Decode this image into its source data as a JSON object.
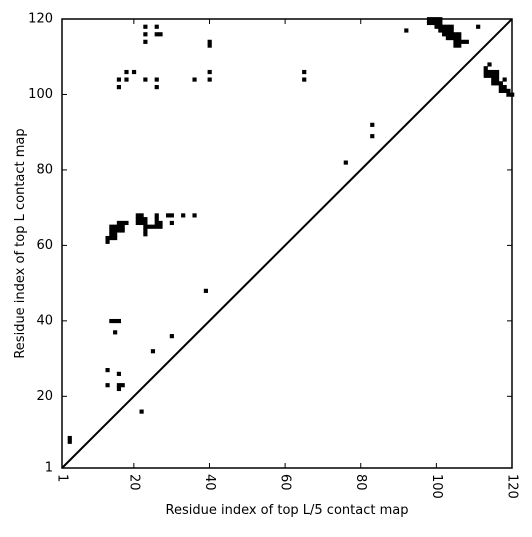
{
  "chart_data": {
    "type": "scatter",
    "marker": "square",
    "title": "",
    "xlabel": "Residue index of top L/5 contact map",
    "ylabel": "Residue index of top L contact map",
    "xlim": [
      1,
      120
    ],
    "ylim": [
      1,
      120
    ],
    "xticks": [
      1,
      20,
      40,
      60,
      80,
      100,
      120
    ],
    "yticks": [
      1,
      20,
      40,
      60,
      80,
      100,
      120
    ],
    "xtick_labels": [
      "1",
      "20",
      "40",
      "60",
      "80",
      "100",
      "120"
    ],
    "ytick_labels": [
      "1",
      "20",
      "40",
      "60",
      "80",
      "100",
      "120"
    ],
    "xtick_rotation": 90,
    "grid": false,
    "diagonal_line": {
      "x": [
        1,
        120
      ],
      "y": [
        1,
        120
      ]
    },
    "colors": {
      "marker": "#000000",
      "line": "#000000",
      "background": "#ffffff"
    },
    "points": [
      [
        3,
        8
      ],
      [
        3,
        9
      ],
      [
        13,
        61
      ],
      [
        13,
        62
      ],
      [
        14,
        62
      ],
      [
        14,
        63
      ],
      [
        14,
        64
      ],
      [
        14,
        65
      ],
      [
        15,
        62
      ],
      [
        15,
        63
      ],
      [
        15,
        64
      ],
      [
        15,
        65
      ],
      [
        16,
        64
      ],
      [
        16,
        65
      ],
      [
        16,
        66
      ],
      [
        17,
        64
      ],
      [
        17,
        65
      ],
      [
        17,
        66
      ],
      [
        18,
        66
      ],
      [
        21,
        66
      ],
      [
        21,
        67
      ],
      [
        21,
        68
      ],
      [
        22,
        66
      ],
      [
        22,
        67
      ],
      [
        22,
        68
      ],
      [
        23,
        63
      ],
      [
        23,
        64
      ],
      [
        23,
        65
      ],
      [
        23,
        66
      ],
      [
        23,
        67
      ],
      [
        24,
        65
      ],
      [
        25,
        65
      ],
      [
        26,
        65
      ],
      [
        26,
        66
      ],
      [
        26,
        67
      ],
      [
        26,
        68
      ],
      [
        27,
        65
      ],
      [
        27,
        66
      ],
      [
        29,
        68
      ],
      [
        30,
        68
      ],
      [
        30,
        66
      ],
      [
        33,
        68
      ],
      [
        36,
        68
      ],
      [
        14,
        40
      ],
      [
        15,
        40
      ],
      [
        16,
        40
      ],
      [
        15,
        37
      ],
      [
        13,
        27
      ],
      [
        16,
        26
      ],
      [
        13,
        23
      ],
      [
        16,
        22
      ],
      [
        16,
        23
      ],
      [
        17,
        23
      ],
      [
        22,
        16
      ],
      [
        25,
        32
      ],
      [
        30,
        36
      ],
      [
        39,
        48
      ],
      [
        16,
        102
      ],
      [
        16,
        104
      ],
      [
        18,
        104
      ],
      [
        18,
        106
      ],
      [
        20,
        106
      ],
      [
        23,
        104
      ],
      [
        23,
        114
      ],
      [
        23,
        116
      ],
      [
        23,
        118
      ],
      [
        26,
        102
      ],
      [
        26,
        104
      ],
      [
        26,
        116
      ],
      [
        26,
        118
      ],
      [
        27,
        116
      ],
      [
        36,
        104
      ],
      [
        40,
        104
      ],
      [
        40,
        106
      ],
      [
        40,
        113
      ],
      [
        40,
        114
      ],
      [
        65,
        104
      ],
      [
        65,
        106
      ],
      [
        76,
        82
      ],
      [
        83,
        89
      ],
      [
        83,
        92
      ],
      [
        92,
        117
      ],
      [
        98,
        119
      ],
      [
        98,
        120
      ],
      [
        99,
        119
      ],
      [
        99,
        120
      ],
      [
        100,
        118
      ],
      [
        100,
        119
      ],
      [
        100,
        120
      ],
      [
        101,
        117
      ],
      [
        101,
        118
      ],
      [
        101,
        119
      ],
      [
        101,
        120
      ],
      [
        102,
        116
      ],
      [
        102,
        117
      ],
      [
        102,
        118
      ],
      [
        103,
        115
      ],
      [
        103,
        116
      ],
      [
        103,
        117
      ],
      [
        103,
        118
      ],
      [
        104,
        115
      ],
      [
        104,
        116
      ],
      [
        104,
        117
      ],
      [
        104,
        118
      ],
      [
        105,
        113
      ],
      [
        105,
        114
      ],
      [
        105,
        115
      ],
      [
        105,
        116
      ],
      [
        106,
        113
      ],
      [
        106,
        114
      ],
      [
        106,
        115
      ],
      [
        106,
        116
      ],
      [
        107,
        114
      ],
      [
        108,
        114
      ],
      [
        111,
        118
      ],
      [
        113,
        105
      ],
      [
        113,
        106
      ],
      [
        113,
        107
      ],
      [
        114,
        105
      ],
      [
        114,
        106
      ],
      [
        114,
        108
      ],
      [
        115,
        103
      ],
      [
        115,
        104
      ],
      [
        115,
        105
      ],
      [
        115,
        106
      ],
      [
        116,
        103
      ],
      [
        116,
        104
      ],
      [
        116,
        105
      ],
      [
        116,
        106
      ],
      [
        117,
        101
      ],
      [
        117,
        102
      ],
      [
        117,
        103
      ],
      [
        118,
        101
      ],
      [
        118,
        102
      ],
      [
        118,
        104
      ],
      [
        119,
        100
      ],
      [
        119,
        101
      ],
      [
        120,
        100
      ]
    ]
  }
}
